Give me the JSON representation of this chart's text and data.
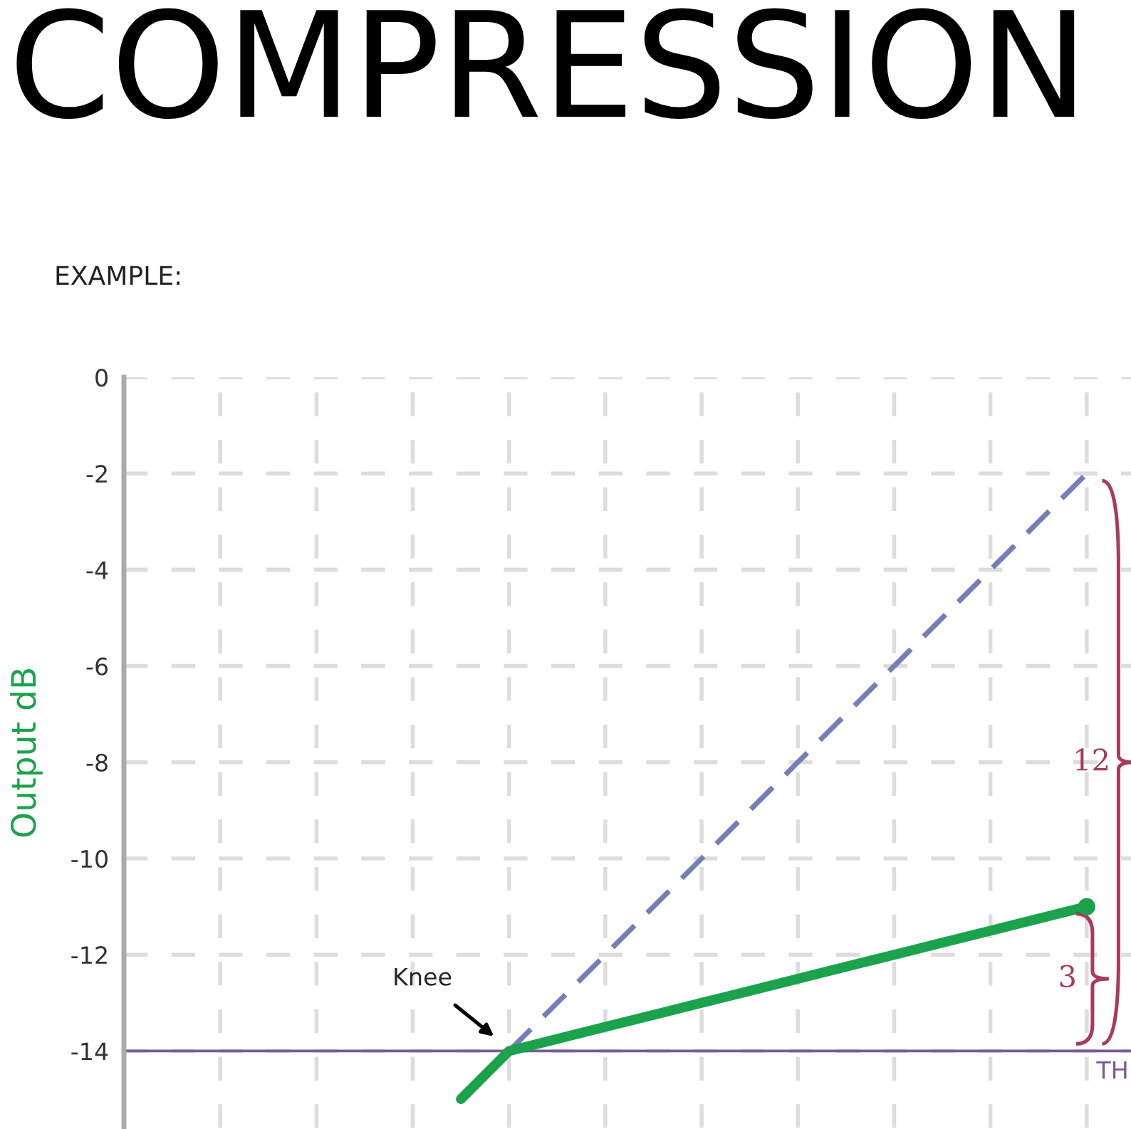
{
  "chart_data": {
    "type": "line",
    "title": "COMPRESSION",
    "subtitle": "EXAMPLE:",
    "ylabel": "Output dB",
    "categories": [
      null,
      null,
      null,
      null,
      null,
      null,
      null,
      null,
      null,
      null,
      null,
      null,
      null,
      null,
      null,
      null,
      null,
      null,
      null,
      null,
      null
    ],
    "ylim": [
      -15.6,
      0
    ],
    "yticks": [
      0,
      -2,
      -4,
      -6,
      -8,
      -10,
      -12,
      -14
    ],
    "tick_labels": "y",
    "grid": true,
    "series": [
      {
        "type": "line",
        "line_style": "dashed",
        "color": "#7480b4",
        "values": [
          null,
          null,
          null,
          null,
          null,
          null,
          null,
          null,
          -14,
          -13,
          -12,
          -11,
          -10,
          -9,
          -8,
          -7,
          -6,
          -5,
          -4,
          -3,
          -2
        ]
      },
      {
        "type": "line",
        "line_style": "solid",
        "color": "#1ba24c",
        "values": [
          null,
          null,
          null,
          null,
          null,
          null,
          null,
          -15,
          -14,
          -13.75,
          -13.5,
          -13.25,
          -13,
          -12.75,
          -12.5,
          -12.25,
          -12,
          -11.75,
          -11.5,
          -11.25,
          -11
        ]
      },
      {
        "type": "scatter",
        "marker": "circle",
        "color": "#1ba24c",
        "values": [
          null,
          null,
          null,
          null,
          null,
          null,
          null,
          null,
          null,
          null,
          null,
          null,
          null,
          null,
          null,
          null,
          null,
          null,
          null,
          null,
          -11
        ]
      }
    ],
    "ref_lines": [
      {
        "axis": "y",
        "value": -14,
        "label": "TH",
        "color": "#7b5a9a"
      }
    ],
    "annotations": [
      "Knee",
      "12",
      "3"
    ]
  }
}
